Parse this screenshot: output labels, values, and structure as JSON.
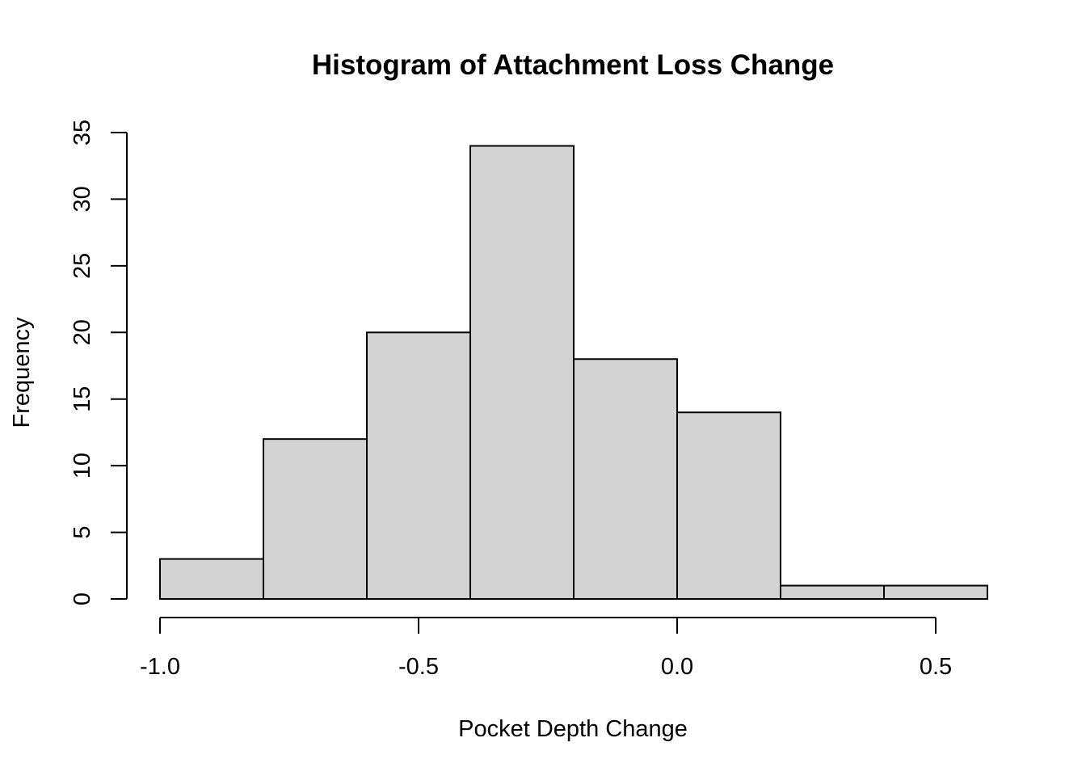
{
  "chart_data": {
    "type": "bar",
    "title": "Histogram of Attachment Loss Change",
    "xlabel": "Pocket Depth Change",
    "ylabel": "Frequency",
    "bins": [
      {
        "from": -1.0,
        "to": -0.8,
        "count": 3
      },
      {
        "from": -0.8,
        "to": -0.6,
        "count": 12
      },
      {
        "from": -0.6,
        "to": -0.4,
        "count": 20
      },
      {
        "from": -0.4,
        "to": -0.2,
        "count": 34
      },
      {
        "from": -0.2,
        "to": 0.0,
        "count": 18
      },
      {
        "from": 0.0,
        "to": 0.2,
        "count": 14
      },
      {
        "from": 0.2,
        "to": 0.4,
        "count": 1
      },
      {
        "from": 0.4,
        "to": 0.6,
        "count": 1
      }
    ],
    "xlim": [
      -1.0,
      0.6
    ],
    "ylim": [
      0,
      35
    ],
    "x_ticks": [
      "-1.0",
      "-0.5",
      "0.0",
      "0.5"
    ],
    "y_ticks": [
      "0",
      "5",
      "10",
      "15",
      "20",
      "25",
      "30",
      "35"
    ],
    "bar_color": "#d3d3d3",
    "grid": false,
    "legend": "none"
  }
}
